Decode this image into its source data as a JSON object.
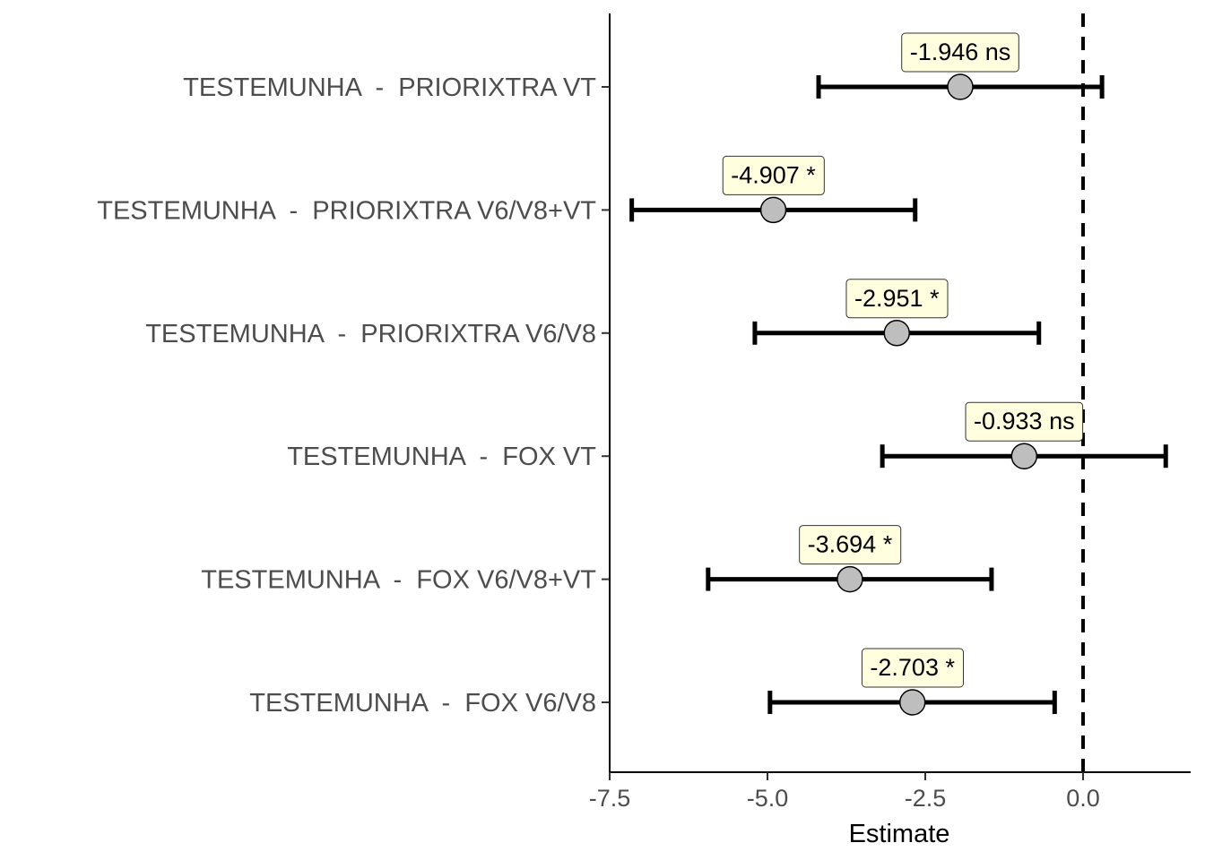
{
  "chart_data": {
    "type": "forest",
    "title": "",
    "xlabel": "Estimate",
    "ylabel": "",
    "xlim": [
      -7.5,
      1.4
    ],
    "x_ticks": [
      -7.5,
      -5.0,
      -2.5,
      0.0
    ],
    "x_tick_labels": [
      "-7.5",
      "-5.0",
      "-2.5",
      "0.0"
    ],
    "reference_line": 0.0,
    "grid": false,
    "categories": [
      "TESTEMUNHA  -  PRIORIXTRA VT",
      "TESTEMUNHA  -  PRIORIXTRA V6/V8+VT",
      "TESTEMUNHA  -  PRIORIXTRA V6/V8",
      "TESTEMUNHA  -  FOX VT",
      "TESTEMUNHA  -  FOX V6/V8+VT",
      "TESTEMUNHA  -  FOX V6/V8"
    ],
    "estimates": [
      -1.946,
      -4.907,
      -2.951,
      -0.933,
      -3.694,
      -2.703
    ],
    "lower": [
      -4.19,
      -7.15,
      -5.2,
      -3.18,
      -5.94,
      -4.96
    ],
    "upper": [
      0.3,
      -2.66,
      -0.7,
      1.31,
      -1.45,
      -0.45
    ],
    "annotations": [
      "-1.946 ns",
      "-4.907 *",
      "-2.951 *",
      "-0.933 ns",
      "-3.694 *",
      "-2.703 *"
    ]
  },
  "colors": {
    "point_fill": "#bebebe",
    "annotation_fill": "#ffffe0",
    "line": "#000000",
    "label_text": "#4d4d4d"
  }
}
